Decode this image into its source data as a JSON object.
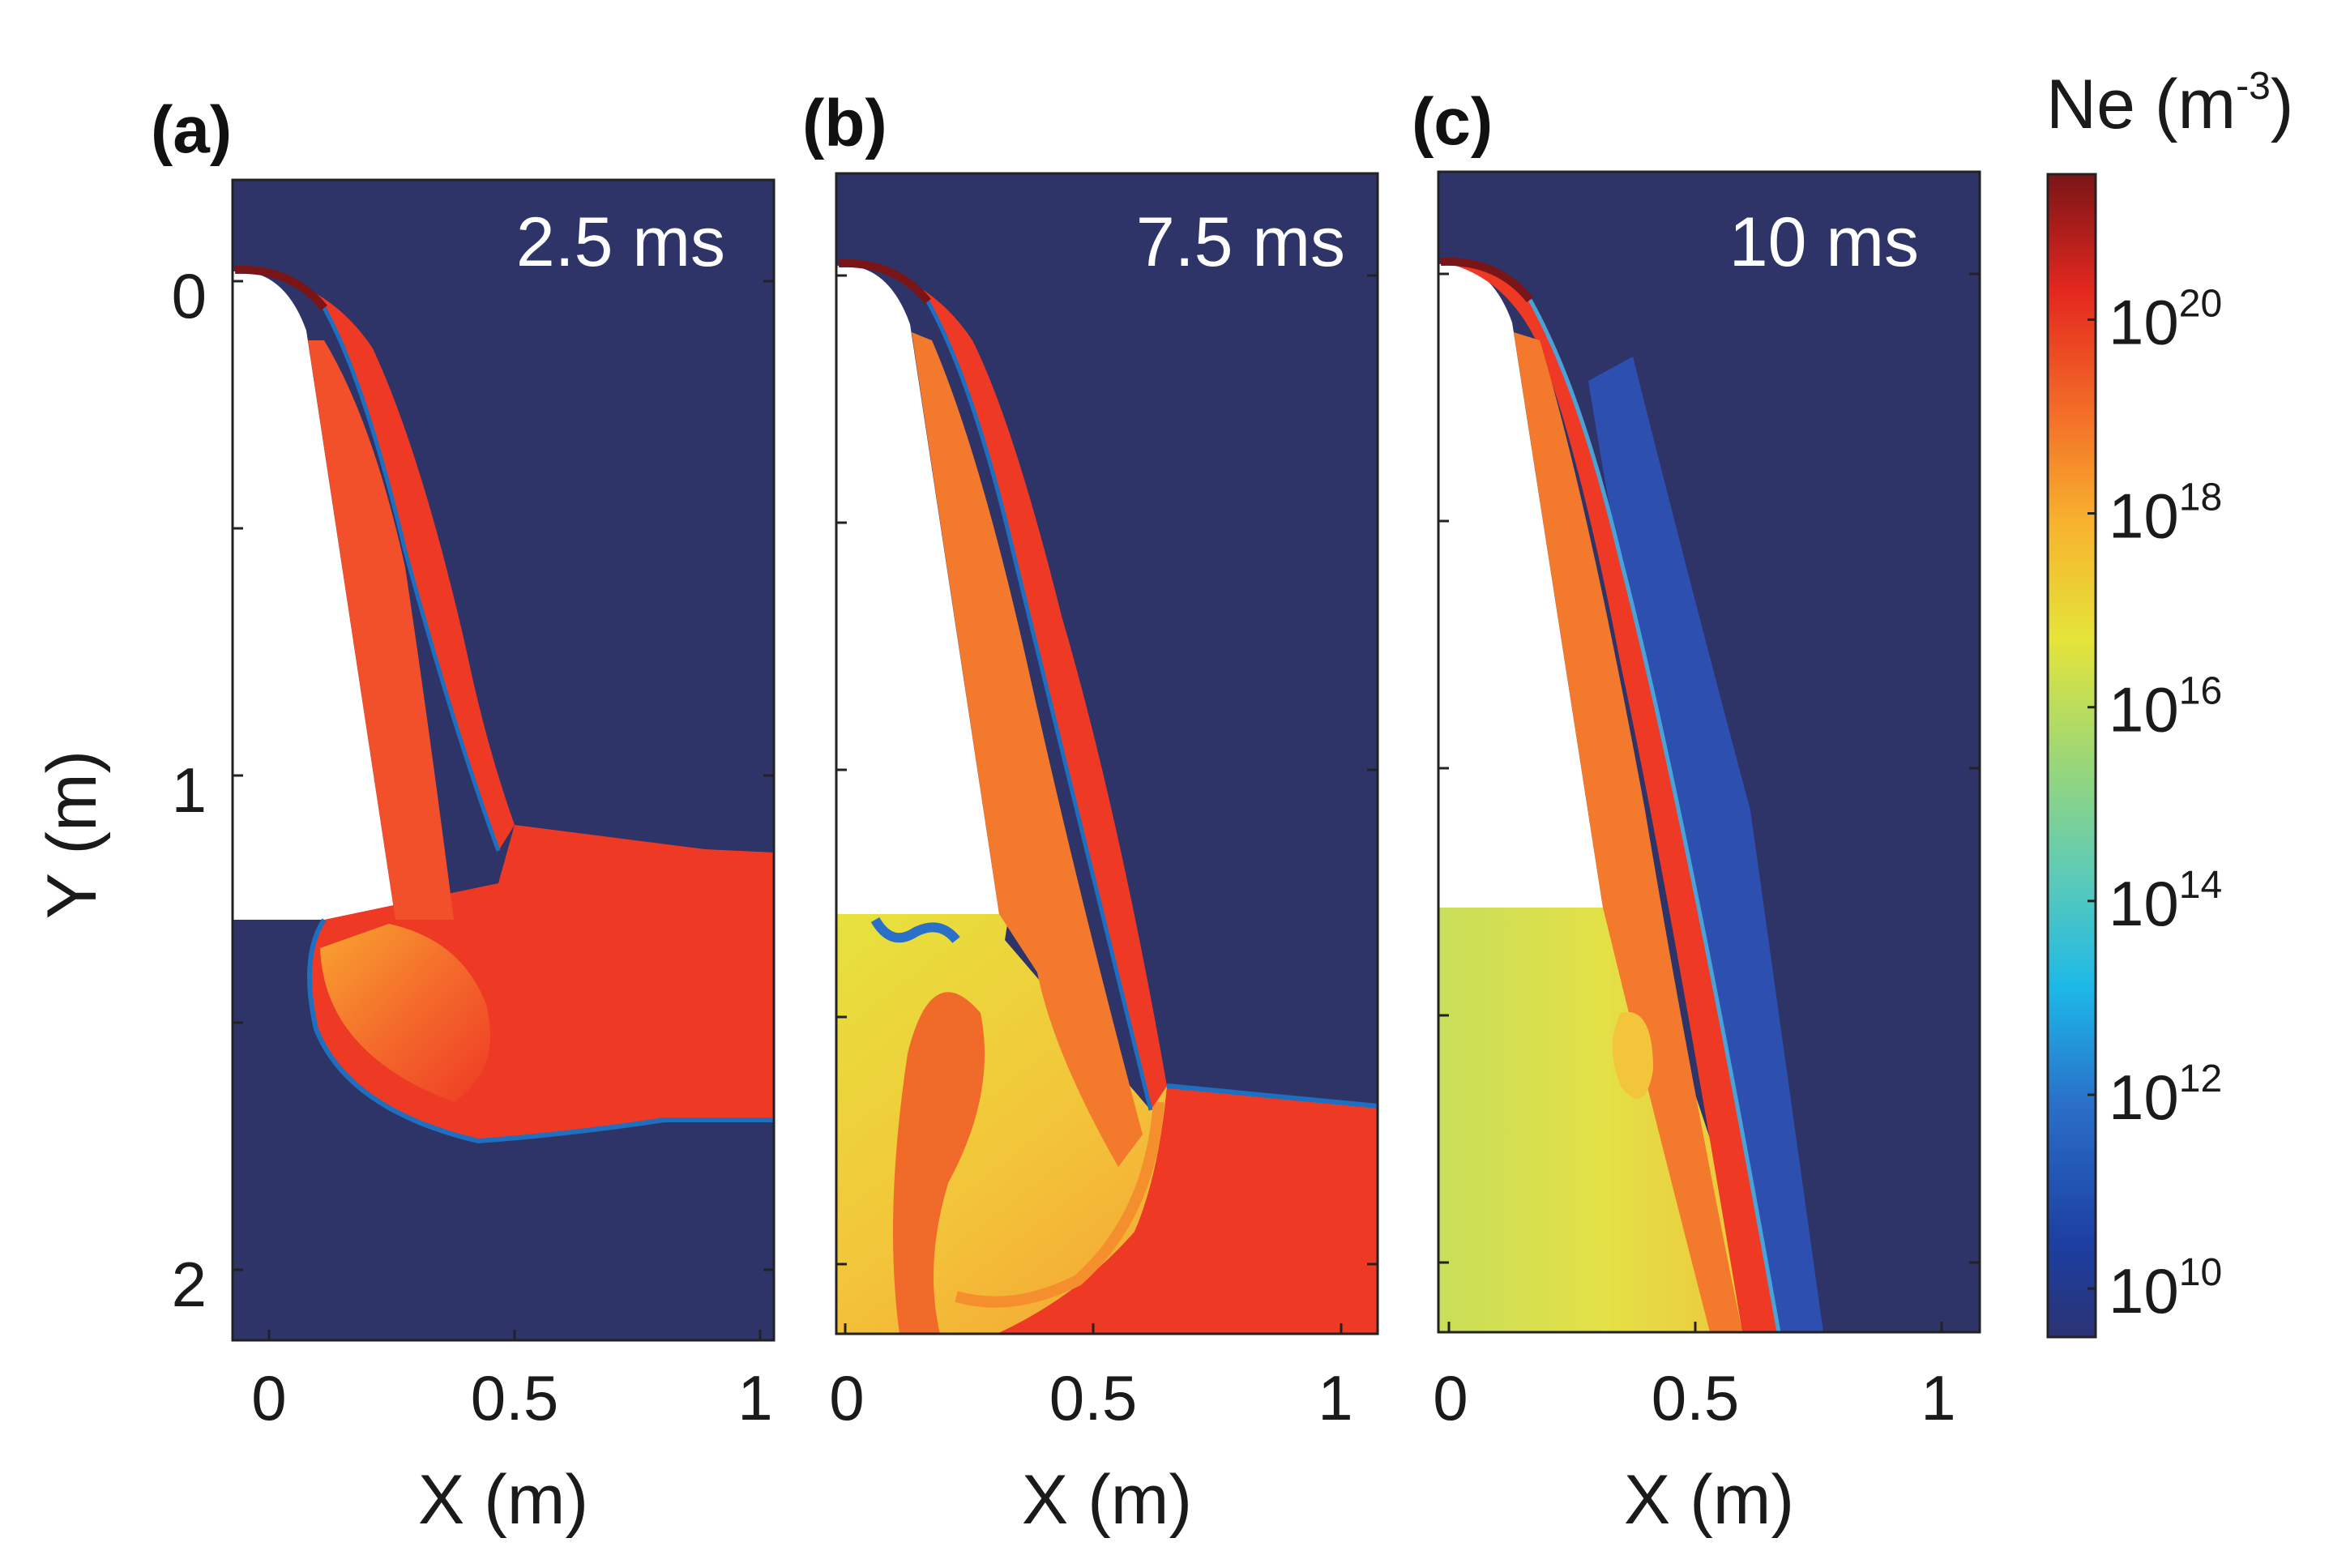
{
  "chart_data": [
    {
      "type": "heatmap",
      "panel": "(a)",
      "time_label": "2.5 ms",
      "xlabel": "X (m)",
      "ylabel": "Y (m)",
      "xlim": [
        -0.07,
        1.02
      ],
      "ylim": [
        -0.2,
        2.15
      ],
      "x_ticks": [
        "0",
        "0.5",
        "1"
      ],
      "y_ticks": [
        "0",
        "1",
        "2"
      ],
      "jet_front_x": 0.5,
      "jet_front_y": [
        1.1,
        1.75
      ],
      "description_levels": {
        "background": 10000000000.0,
        "jet": 1e+19,
        "wall": 1e+21
      }
    },
    {
      "type": "heatmap",
      "panel": "(b)",
      "time_label": "7.5 ms",
      "xlabel": "X (m)",
      "xlim": [
        -0.02,
        1.07
      ],
      "ylim": [
        -0.2,
        2.15
      ],
      "x_ticks": [
        "0",
        "0.5",
        "1"
      ],
      "jet_front_x": 0.68,
      "jet_front_y": [
        1.62,
        1.68
      ]
    },
    {
      "type": "heatmap",
      "panel": "(c)",
      "time_label": "10 ms",
      "xlabel": "X (m)",
      "xlim": [
        -0.02,
        1.07
      ],
      "ylim": [
        -0.2,
        2.15
      ],
      "x_ticks": [
        "0",
        "0.5",
        "1"
      ],
      "jet_front_x": 0.75
    }
  ],
  "colorbar": {
    "title_base": "Ne (m",
    "title_sup": "-3",
    "title_end": ")",
    "scale": "log",
    "range_exp": [
      9.5,
      21.5
    ],
    "ticks": [
      {
        "base": "10",
        "exp": "20",
        "value": 20
      },
      {
        "base": "10",
        "exp": "18",
        "value": 18
      },
      {
        "base": "10",
        "exp": "16",
        "value": 16
      },
      {
        "base": "10",
        "exp": "14",
        "value": 14
      },
      {
        "base": "10",
        "exp": "12",
        "value": 12
      },
      {
        "base": "10",
        "exp": "10",
        "value": 10
      }
    ]
  },
  "colors": {
    "background": "#2e3468",
    "jet": "#ee3a25",
    "jet_light": "#f66a2a",
    "wall": "#7a1517",
    "edge": "#1f5fb5",
    "mixed": "#f8b832",
    "yellow": "#e9e23a",
    "green": "#c8df5a"
  }
}
